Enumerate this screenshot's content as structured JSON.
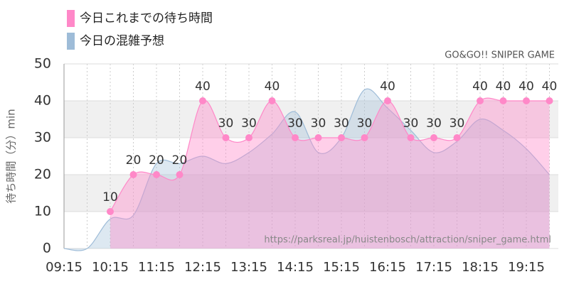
{
  "chart_data": {
    "type": "area",
    "credit": "GO&GO!! SNIPER GAME",
    "watermark": "https://parksreal.jp/huistenbosch/attraction/sniper_game.html",
    "y_label": "待ち時間（分）min",
    "categories": [
      "09:15",
      null,
      "10:15",
      null,
      "11:15",
      null,
      "12:15",
      null,
      "13:15",
      null,
      "14:15",
      null,
      "15:15",
      null,
      "16:15",
      null,
      "17:15",
      null,
      "18:15",
      null,
      "19:15",
      null
    ],
    "series": [
      {
        "name": "今日の混雑予想",
        "color": "#9ebcd8",
        "values": [
          0,
          0,
          8,
          9,
          23,
          23,
          25,
          23,
          26,
          31,
          37,
          26,
          30,
          43,
          38,
          32,
          26,
          29,
          35,
          32,
          27,
          20
        ]
      },
      {
        "name": "今日これまでの待ち時間",
        "color": "#ff88c8",
        "values": [
          null,
          null,
          10,
          20,
          20,
          20,
          40,
          30,
          30,
          40,
          30,
          30,
          30,
          30,
          40,
          30,
          30,
          30,
          40,
          40,
          40,
          40
        ]
      }
    ],
    "ylim": [
      0,
      50
    ],
    "yticks": [
      0,
      10,
      20,
      30,
      40,
      50
    ],
    "grid": true
  }
}
